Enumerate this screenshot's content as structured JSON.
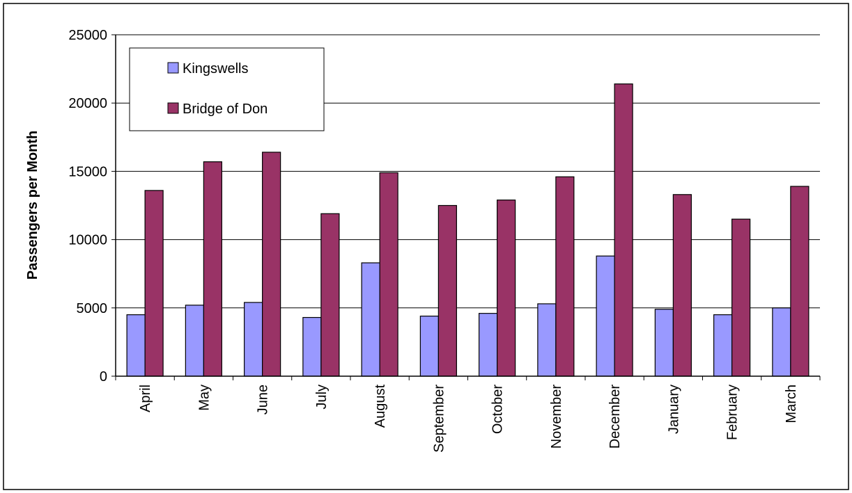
{
  "chart_data": {
    "type": "bar",
    "title": "",
    "xlabel": "",
    "ylabel": "Passengers per Month",
    "ylim": [
      0,
      25000
    ],
    "yticks": [
      0,
      5000,
      10000,
      15000,
      20000,
      25000
    ],
    "ytick_labels": [
      "0",
      "5000",
      "10000",
      "15000",
      "20000",
      "25000"
    ],
    "grid": true,
    "legend_position": "top-left",
    "categories": [
      "April",
      "May",
      "June",
      "July",
      "August",
      "September",
      "October",
      "November",
      "December",
      "January",
      "February",
      "March"
    ],
    "series": [
      {
        "name": "Kingswells",
        "color": "#9999ff",
        "values": [
          4500,
          5200,
          5400,
          4300,
          8300,
          4400,
          4600,
          5300,
          8800,
          4900,
          4500,
          5000
        ]
      },
      {
        "name": "Bridge of Don",
        "color": "#993366",
        "values": [
          13600,
          15700,
          16400,
          11900,
          14900,
          12500,
          12900,
          14600,
          21400,
          13300,
          11500,
          13900
        ]
      }
    ]
  }
}
